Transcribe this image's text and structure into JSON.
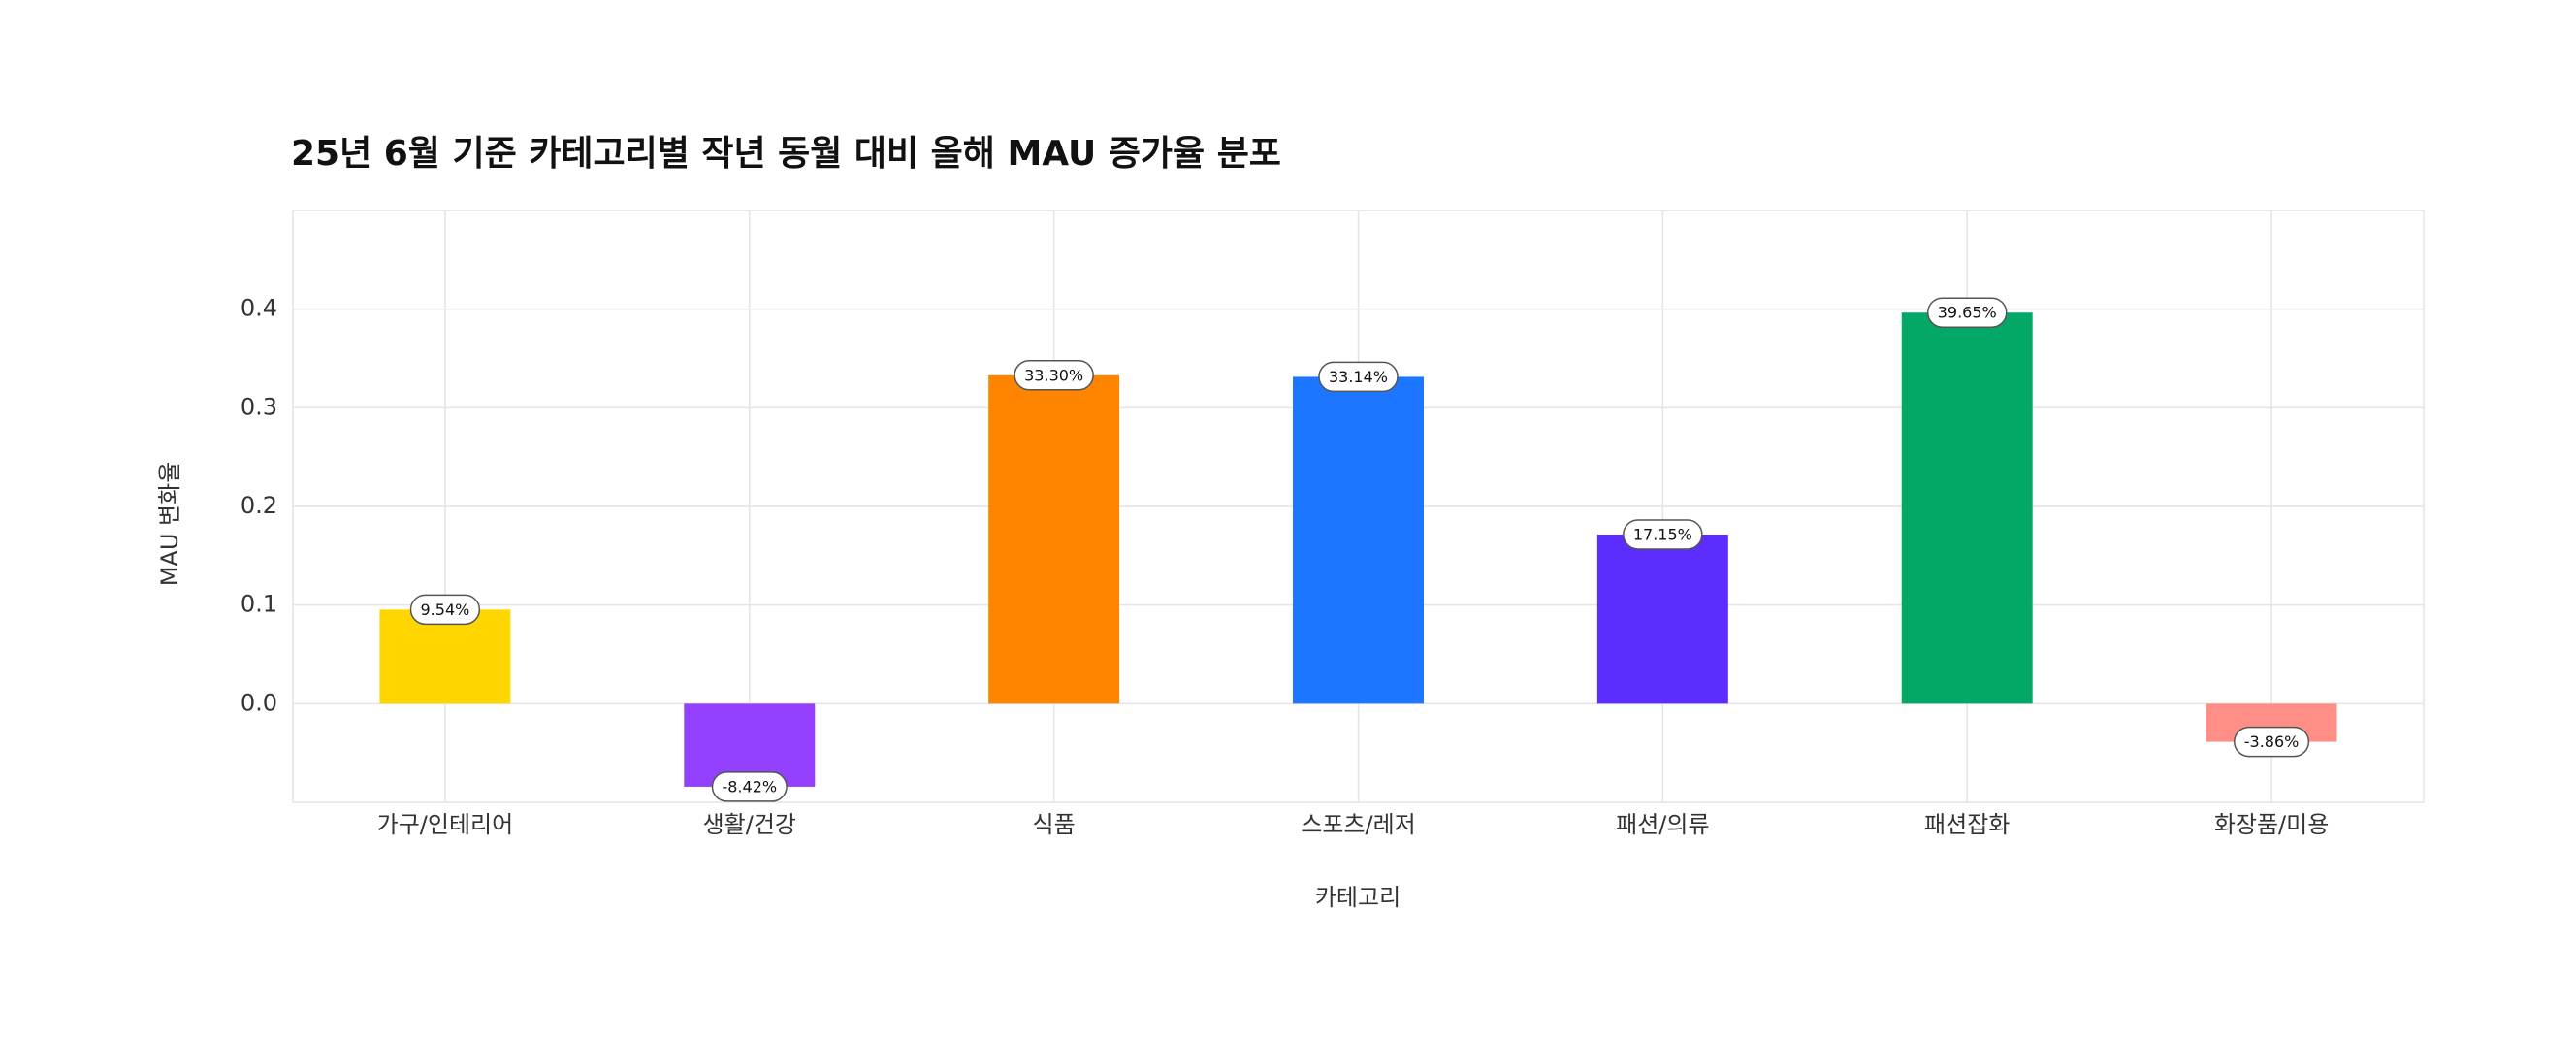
{
  "chart_data": {
    "type": "bar",
    "title": "25년 6월 기준 카테고리별 작년 동월 대비 올해 MAU 증가율 분포",
    "xlabel": "카테고리",
    "ylabel": "MAU 변화율",
    "categories": [
      "가구/인테리어",
      "생활/건강",
      "식품",
      "스포츠/레저",
      "패션/의류",
      "패션잡화",
      "화장품/미용"
    ],
    "values": [
      0.0954,
      -0.0842,
      0.333,
      0.3314,
      0.1715,
      0.3965,
      -0.0386
    ],
    "value_labels": [
      "9.54%",
      "-8.42%",
      "33.30%",
      "33.14%",
      "17.15%",
      "39.65%",
      "-3.86%"
    ],
    "colors": [
      "#FFD600",
      "#9340FF",
      "#FF8500",
      "#1D76FF",
      "#5B2DFF",
      "#03A866",
      "#FF8F86"
    ],
    "ylim": [
      -0.1,
      0.5
    ],
    "yticks": [
      {
        "value": 0,
        "label": "0.0"
      },
      0.1,
      0.2,
      0.3,
      0.4
    ],
    "grid": true
  }
}
